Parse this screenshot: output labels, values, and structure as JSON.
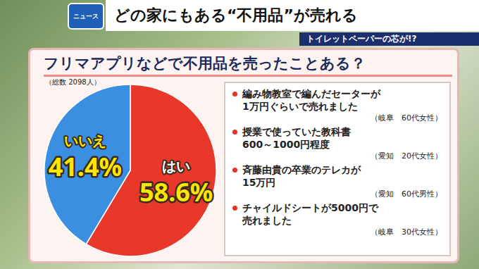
{
  "header": {
    "logo": "ニュース",
    "title": "どの家にもある“不用品”が売れる",
    "subtitle": "トイレットペーパーの芯が!?"
  },
  "chart_data": {
    "type": "pie",
    "title": "フリマアプリなどで不用品を売ったことある？",
    "subtitle": "（総数 2098人）",
    "categories": [
      "はい",
      "いいえ"
    ],
    "values": [
      58.6,
      41.4
    ],
    "value_labels": [
      "58.6%",
      "41.4%"
    ],
    "colors": [
      "#e8382a",
      "#3a8fe0"
    ],
    "data_labels": true,
    "annotations": [
      {
        "lines": [
          "編み物教室で編んだセーターが",
          "1万円ぐらいで売れました"
        ],
        "source": "（岐阜　60代女性）"
      },
      {
        "lines": [
          "授業で使っていた教科書",
          "600～1000円程度"
        ],
        "source": "（愛知　20代女性）"
      },
      {
        "lines": [
          "斉藤由貴の卒業のテレカが",
          "15万円"
        ],
        "source": "（愛知　60代男性）"
      },
      {
        "lines": [
          "チャイルドシートが5000円で",
          "売れました"
        ],
        "source": "（岐阜　30代女性）"
      }
    ]
  }
}
